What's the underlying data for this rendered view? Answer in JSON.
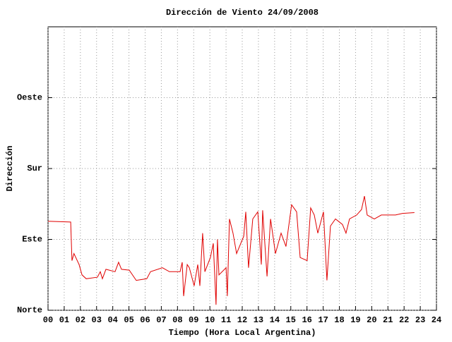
{
  "chart_data": {
    "type": "line",
    "title": "Dirección de Viento 24/09/2008",
    "x_label": "Tiempo (Hora Local Argentina)",
    "y_label": "Dirección",
    "grid": true,
    "xlim": [
      0,
      24
    ],
    "ylim": [
      0,
      360
    ],
    "xticks": [
      {
        "value": 0,
        "label": "00"
      },
      {
        "value": 1,
        "label": "01"
      },
      {
        "value": 2,
        "label": "02"
      },
      {
        "value": 3,
        "label": "03"
      },
      {
        "value": 4,
        "label": "04"
      },
      {
        "value": 5,
        "label": "05"
      },
      {
        "value": 6,
        "label": "06"
      },
      {
        "value": 7,
        "label": "07"
      },
      {
        "value": 8,
        "label": "08"
      },
      {
        "value": 9,
        "label": "09"
      },
      {
        "value": 10,
        "label": "10"
      },
      {
        "value": 11,
        "label": "11"
      },
      {
        "value": 12,
        "label": "12"
      },
      {
        "value": 13,
        "label": "13"
      },
      {
        "value": 14,
        "label": "14"
      },
      {
        "value": 15,
        "label": "15"
      },
      {
        "value": 16,
        "label": "16"
      },
      {
        "value": 17,
        "label": "17"
      },
      {
        "value": 18,
        "label": "18"
      },
      {
        "value": 19,
        "label": "19"
      },
      {
        "value": 20,
        "label": "20"
      },
      {
        "value": 21,
        "label": "21"
      },
      {
        "value": 22,
        "label": "22"
      },
      {
        "value": 23,
        "label": "23"
      },
      {
        "value": 24,
        "label": "24"
      }
    ],
    "yticks": [
      {
        "value": 0,
        "label": "Norte"
      },
      {
        "value": 90,
        "label": "Este"
      },
      {
        "value": 180,
        "label": "Sur"
      },
      {
        "value": 270,
        "label": "Oeste"
      }
    ],
    "series": [
      {
        "color": "#e00000",
        "x": [
          0,
          1.4,
          1.48,
          1.6,
          1.92,
          2.1,
          2.36,
          3.05,
          3.23,
          3.36,
          3.58,
          4.14,
          4.36,
          4.54,
          5.02,
          5.45,
          6.1,
          6.33,
          7.07,
          7.5,
          8.16,
          8.29,
          8.38,
          8.6,
          8.73,
          9.03,
          9.25,
          9.38,
          9.55,
          9.69,
          10.03,
          10.21,
          10.38,
          10.47,
          10.56,
          11.0,
          11.08,
          11.21,
          11.43,
          11.65,
          12.09,
          12.22,
          12.39,
          12.65,
          12.96,
          13.18,
          13.26,
          13.53,
          13.75,
          14.05,
          14.4,
          14.7,
          15.05,
          15.36,
          15.58,
          16.01,
          16.23,
          16.45,
          16.67,
          17.02,
          17.23,
          17.45,
          17.76,
          18.19,
          18.41,
          18.63,
          19.07,
          19.37,
          19.55,
          19.72,
          20.16,
          20.59,
          21.47,
          21.9,
          22.64
        ],
        "values": [
          113,
          112,
          63,
          72,
          58,
          45,
          40,
          42,
          49,
          40,
          52,
          49,
          61,
          52,
          51,
          38,
          40,
          49,
          54,
          49,
          49,
          61,
          18,
          58,
          54,
          31,
          58,
          31,
          98,
          49,
          67,
          85,
          7,
          90,
          45,
          54,
          18,
          116,
          98,
          72,
          94,
          125,
          54,
          116,
          125,
          58,
          127,
          43,
          116,
          72,
          98,
          81,
          134,
          125,
          67,
          63,
          130,
          121,
          98,
          125,
          38,
          107,
          116,
          109,
          98,
          116,
          121,
          128,
          145,
          121,
          116,
          121,
          121,
          123,
          124
        ]
      }
    ]
  }
}
